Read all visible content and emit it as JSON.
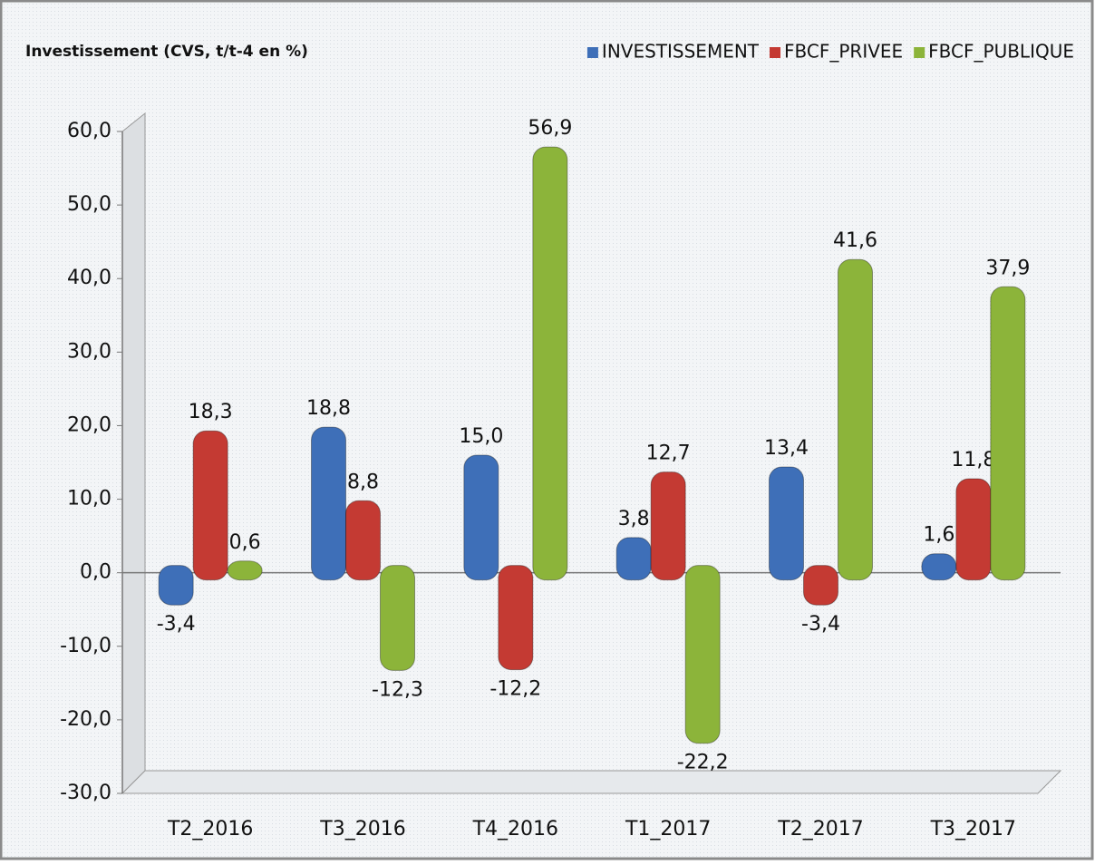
{
  "chart_data": {
    "type": "bar",
    "title": "Investissement (CVS, t/t-4 en %)",
    "categories": [
      "T2_2016",
      "T3_2016",
      "T4_2016",
      "T1_2017",
      "T2_2017",
      "T3_2017"
    ],
    "series": [
      {
        "name": "INVESTISSEMENT",
        "color": "#3e6fb8",
        "values": [
          -3.4,
          18.8,
          15.0,
          3.8,
          13.4,
          1.6
        ],
        "value_labels": [
          "-3,4",
          "18,8",
          "15,0",
          "3,8",
          "13,4",
          "1,6"
        ]
      },
      {
        "name": "FBCF_PRIVEE",
        "color": "#c43a33",
        "values": [
          18.3,
          8.8,
          -12.2,
          12.7,
          -3.4,
          11.8
        ],
        "value_labels": [
          "18,3",
          "8,8",
          "-12,2",
          "12,7",
          "-3,4",
          "11,8"
        ]
      },
      {
        "name": "FBCF_PUBLIQUE",
        "color": "#8cb43a",
        "values": [
          0.6,
          -12.3,
          56.9,
          -22.2,
          41.6,
          37.9
        ],
        "value_labels": [
          "0,6",
          "-12,3",
          "56,9",
          "-22,2",
          "41,6",
          "37,9"
        ]
      }
    ],
    "ylim": [
      -30,
      60
    ],
    "yticks": [
      {
        "value": -30,
        "label": "-30,0"
      },
      {
        "value": -20,
        "label": "-20,0"
      },
      {
        "value": -10,
        "label": "-10,0"
      },
      {
        "value": 0,
        "label": "0,0"
      },
      {
        "value": 10,
        "label": "10,0"
      },
      {
        "value": 20,
        "label": "20,0"
      },
      {
        "value": 30,
        "label": "30,0"
      },
      {
        "value": 40,
        "label": "40,0"
      },
      {
        "value": 50,
        "label": "50,0"
      },
      {
        "value": 60,
        "label": "60,0"
      }
    ],
    "legend": "top-right",
    "grid": false
  }
}
